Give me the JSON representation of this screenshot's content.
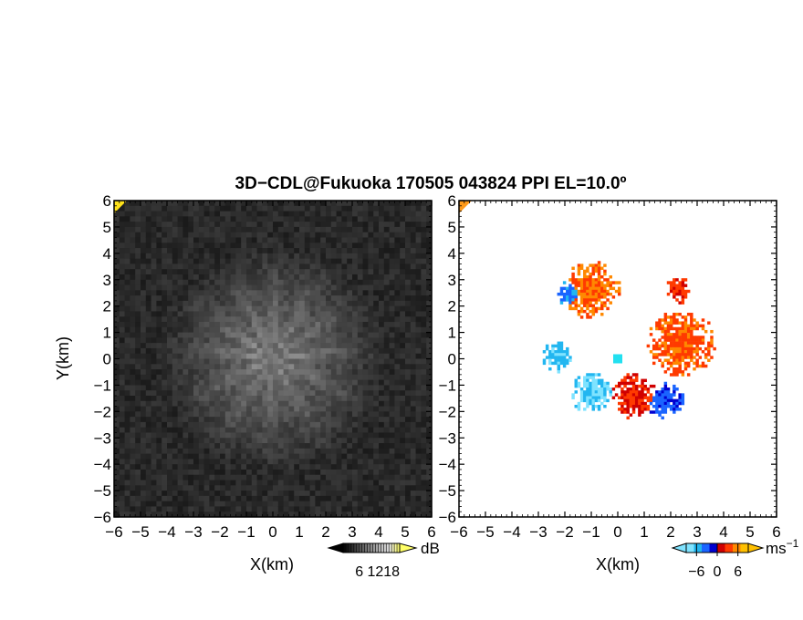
{
  "title": "3D−CDL@Fukuoka 170505 043824 PPI EL=10.0º",
  "colors": {
    "background": "#ffffff",
    "axis": "#000000",
    "snr_dark": "#1a1a1a",
    "snr_light": "#c8c8c8",
    "corner_yellow": "#ffe21a"
  },
  "chart_data": [
    {
      "type": "heatmap",
      "name": "snr-ppi",
      "xlabel": "X(km)",
      "ylabel": "Y(km)",
      "xlim": [
        -6,
        6
      ],
      "ylim": [
        -6,
        6
      ],
      "x_ticks": [
        "−6",
        "−5",
        "−4",
        "−3",
        "−2",
        "−1",
        "0",
        "1",
        "2",
        "3",
        "4",
        "5",
        "6"
      ],
      "y_ticks": [
        "6",
        "5",
        "4",
        "3",
        "2",
        "1",
        "0",
        "−1",
        "−2",
        "−3",
        "−4",
        "−5",
        "−6"
      ],
      "colorbar": {
        "unit": "dB",
        "ticks": [
          "6",
          "12",
          "18"
        ],
        "range": [
          0,
          21
        ],
        "colors": [
          "#000000",
          "#333333",
          "#666666",
          "#999999",
          "#cccccc",
          "#ffffff",
          "#ffff66"
        ]
      }
    },
    {
      "type": "scatter",
      "name": "doppler-velocity-ppi",
      "xlabel": "X(km)",
      "ylabel": "",
      "xlim": [
        -6,
        6
      ],
      "ylim": [
        -6,
        6
      ],
      "x_ticks": [
        "−6",
        "−5",
        "−4",
        "−3",
        "−2",
        "−1",
        "0",
        "1",
        "2",
        "3",
        "4",
        "5",
        "6"
      ],
      "y_ticks": [
        "6",
        "5",
        "4",
        "3",
        "2",
        "1",
        "0",
        "−1",
        "−2",
        "−3",
        "−4",
        "−5",
        "−6"
      ],
      "colorbar": {
        "unit": "ms",
        "unit_exp": "−1",
        "ticks": [
          "−6",
          "0",
          "6"
        ],
        "range": [
          -9,
          9
        ],
        "colors": [
          "#7fe3ff",
          "#22b6f0",
          "#1a64ff",
          "#0000d0",
          "#d00000",
          "#ff3a00",
          "#ff8800",
          "#ffc000"
        ]
      },
      "regions": [
        {
          "label": "north-west lobe",
          "center": [
            -1.0,
            2.6
          ],
          "radius": 1.1,
          "velocity": 5
        },
        {
          "label": "north-west inner",
          "center": [
            -1.8,
            2.5
          ],
          "radius": 0.5,
          "velocity": -4
        },
        {
          "label": "east lobe",
          "center": [
            2.4,
            0.6
          ],
          "radius": 1.3,
          "velocity": 4
        },
        {
          "label": "west lobe",
          "center": [
            -2.3,
            0.1
          ],
          "radius": 0.6,
          "velocity": -6
        },
        {
          "label": "south-west lobe",
          "center": [
            -1.0,
            -1.3
          ],
          "radius": 0.8,
          "velocity": -7
        },
        {
          "label": "south lobe",
          "center": [
            0.6,
            -1.4
          ],
          "radius": 0.9,
          "velocity": 2
        },
        {
          "label": "south-east lobe",
          "center": [
            1.8,
            -1.6
          ],
          "radius": 0.7,
          "velocity": -3
        },
        {
          "label": "north-east spur",
          "center": [
            2.3,
            2.6
          ],
          "radius": 0.5,
          "velocity": 3
        }
      ]
    }
  ]
}
